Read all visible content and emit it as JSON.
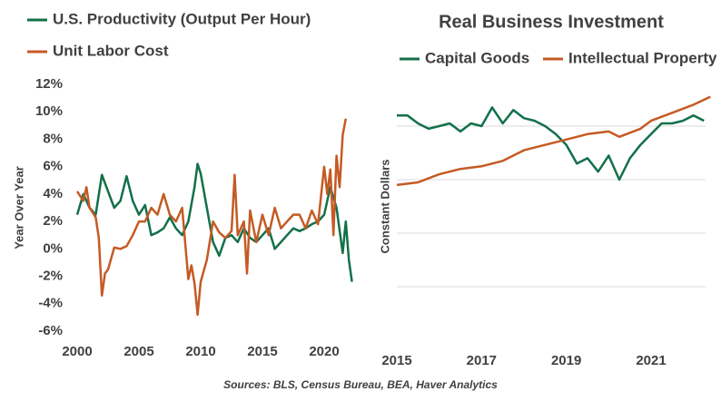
{
  "chart_data": [
    {
      "type": "line",
      "y_label": "Year Over Year",
      "xlim": [
        2000,
        2022.5
      ],
      "xticks": [
        2000,
        2005,
        2010,
        2015,
        2020
      ],
      "ylim": [
        -6,
        12
      ],
      "yticks": [
        {
          "value": -6,
          "label": "-6%"
        },
        {
          "value": -4,
          "label": "-4%"
        },
        {
          "value": -2,
          "label": "-2%"
        },
        {
          "value": 0,
          "label": "0%"
        },
        {
          "value": 2,
          "label": "2%"
        },
        {
          "value": 4,
          "label": "4%"
        },
        {
          "value": 6,
          "label": "6%"
        },
        {
          "value": 8,
          "label": "8%"
        },
        {
          "value": 10,
          "label": "10%"
        },
        {
          "value": 12,
          "label": "12%"
        }
      ],
      "grid": false,
      "legend": "top-left-stacked",
      "series": [
        {
          "name": "U.S. Productivity (Output Per Hour)",
          "color": "#12704a",
          "x": [
            2000,
            2000.5,
            2001,
            2001.5,
            2002,
            2002.5,
            2003,
            2003.5,
            2004,
            2004.5,
            2005,
            2005.5,
            2006,
            2006.5,
            2007,
            2007.5,
            2008,
            2008.5,
            2009,
            2009.5,
            2009.75,
            2010,
            2010.5,
            2011,
            2011.5,
            2012,
            2012.5,
            2013,
            2013.5,
            2014,
            2014.5,
            2015,
            2015.5,
            2016,
            2016.5,
            2017,
            2017.5,
            2018,
            2018.5,
            2019,
            2019.5,
            2020,
            2020.25,
            2020.5,
            2021,
            2021.5,
            2021.75,
            2022,
            2022.25
          ],
          "values": [
            2.5,
            4.0,
            3.0,
            2.5,
            5.4,
            4.2,
            3.0,
            3.5,
            5.3,
            3.5,
            2.5,
            3.2,
            1.0,
            1.2,
            1.5,
            2.3,
            1.5,
            1.0,
            2.0,
            4.5,
            6.2,
            5.5,
            3.0,
            0.5,
            -0.5,
            0.8,
            1.0,
            0.5,
            1.5,
            0.8,
            0.5,
            1.0,
            1.5,
            0.0,
            0.5,
            1.0,
            1.5,
            1.3,
            1.5,
            1.8,
            2.0,
            2.5,
            3.5,
            4.5,
            3.0,
            -0.3,
            2.0,
            -0.8,
            -2.4
          ]
        },
        {
          "name": "Unit Labor Cost",
          "color": "#c55a24",
          "x": [
            2000,
            2000.5,
            2000.75,
            2001,
            2001.5,
            2001.75,
            2002,
            2002.25,
            2002.5,
            2003,
            2003.5,
            2004,
            2004.5,
            2005,
            2005.5,
            2006,
            2006.5,
            2007,
            2007.5,
            2008,
            2008.5,
            2009,
            2009.25,
            2009.5,
            2009.75,
            2010,
            2010.5,
            2011,
            2011.5,
            2012,
            2012.5,
            2012.75,
            2013,
            2013.5,
            2013.75,
            2014,
            2014.5,
            2015,
            2015.5,
            2016,
            2016.5,
            2017,
            2017.5,
            2018,
            2018.5,
            2019,
            2019.5,
            2020,
            2020.25,
            2020.5,
            2020.75,
            2021,
            2021.25,
            2021.5,
            2021.75
          ],
          "values": [
            4.2,
            3.5,
            4.5,
            3.0,
            2.3,
            0.8,
            -3.4,
            -1.8,
            -1.5,
            0.1,
            0.0,
            0.2,
            1.0,
            2.0,
            2.0,
            3.0,
            2.5,
            4.0,
            2.5,
            2.0,
            3.0,
            -2.2,
            -1.2,
            -2.5,
            -4.8,
            -2.4,
            -0.8,
            2.0,
            1.2,
            0.8,
            1.3,
            5.4,
            1.0,
            2.0,
            -1.8,
            2.8,
            0.5,
            2.5,
            1.0,
            3.0,
            1.5,
            2.0,
            2.5,
            2.5,
            1.5,
            2.8,
            1.8,
            6.0,
            4.0,
            5.8,
            1.0,
            6.8,
            4.5,
            8.3,
            9.5
          ]
        }
      ]
    },
    {
      "type": "line",
      "title": "Real Business Investment",
      "y_label": "Constant Dollars",
      "xlim": [
        2015,
        2022.5
      ],
      "xticks": [
        2015,
        2017,
        2019,
        2021
      ],
      "ylim": [
        0,
        100
      ],
      "yticks": [
        20,
        40,
        60,
        80
      ],
      "ytick_labels": false,
      "grid": true,
      "legend": "top-row",
      "series": [
        {
          "name": "Capital Goods",
          "color": "#12704a",
          "x": [
            2015,
            2015.25,
            2015.5,
            2015.75,
            2016,
            2016.25,
            2016.5,
            2016.75,
            2017,
            2017.25,
            2017.5,
            2017.75,
            2018,
            2018.25,
            2018.5,
            2018.75,
            2019,
            2019.25,
            2019.5,
            2019.75,
            2020,
            2020.25,
            2020.5,
            2020.75,
            2021,
            2021.25,
            2021.5,
            2021.75,
            2022,
            2022.25
          ],
          "values": [
            84,
            84,
            81,
            79,
            80,
            81,
            78,
            81,
            80,
            87,
            81,
            86,
            83,
            82,
            80,
            77,
            73,
            66,
            68,
            63,
            69,
            60,
            68,
            73,
            77,
            81,
            81,
            82,
            84,
            82
          ]
        },
        {
          "name": "Intellectual Property",
          "color": "#c55a24",
          "x": [
            2015,
            2015.5,
            2016,
            2016.5,
            2017,
            2017.5,
            2018,
            2018.5,
            2019,
            2019.5,
            2020,
            2020.25,
            2020.75,
            2021,
            2021.5,
            2022,
            2022.4
          ],
          "values": [
            58,
            59,
            62,
            64,
            65,
            67,
            71,
            73,
            75,
            77,
            78,
            76,
            79,
            82,
            85,
            88,
            91
          ]
        }
      ]
    }
  ],
  "source": "Sources: BLS, Census Bureau, BEA, Haver Analytics"
}
